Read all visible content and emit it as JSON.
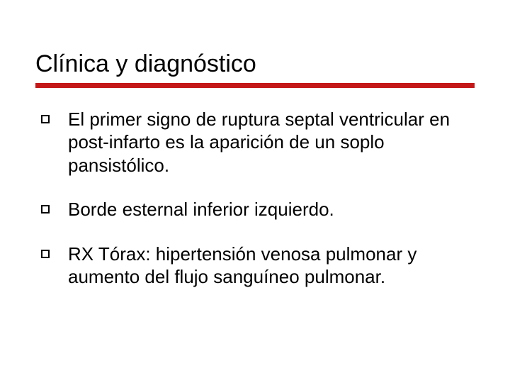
{
  "slide": {
    "title": "Clínica y diagnóstico",
    "title_color": "#000000",
    "title_fontsize": 34,
    "underline_color": "#c41818",
    "underline_height": 7,
    "background_color": "#ffffff",
    "body_fontsize": 26,
    "body_color": "#000000",
    "bullet_marker": {
      "type": "hollow-square",
      "size": 12,
      "border_width": 2,
      "color": "#000000"
    },
    "bullets": [
      {
        "text": "El primer signo de ruptura septal ventricular en post-infarto es la aparición de un soplo pansistólico."
      },
      {
        "text": "Borde esternal inferior izquierdo."
      },
      {
        "text": "RX Tórax: hipertensión venosa pulmonar y aumento del flujo sanguíneo pulmonar."
      }
    ]
  }
}
